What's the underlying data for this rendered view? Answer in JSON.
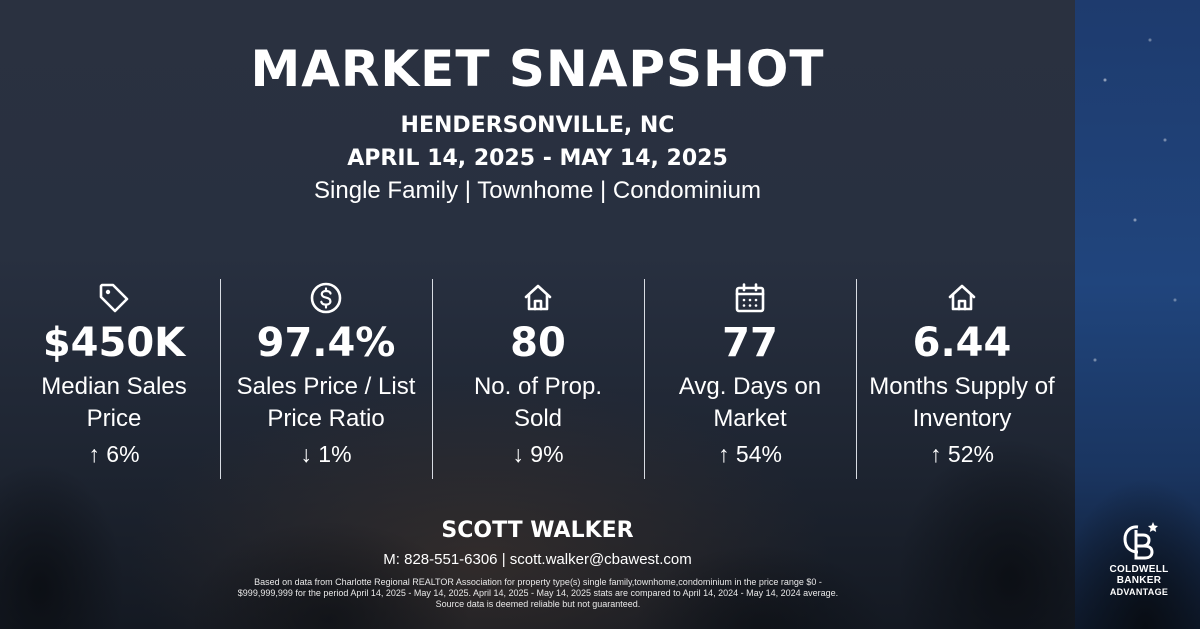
{
  "header": {
    "title": "MARKET SNAPSHOT",
    "location": "HENDERSONVILLE, NC",
    "date_range": "APRIL 14, 2025 - MAY 14, 2025",
    "property_types": "Single Family | Townhome | Condominium"
  },
  "stats": [
    {
      "icon": "price-tag-icon",
      "value": "$450K",
      "label": "Median Sales Price",
      "change": "↑ 6%"
    },
    {
      "icon": "dollar-circle-icon",
      "value": "97.4%",
      "label": "Sales Price / List Price Ratio",
      "change": "↓ 1%"
    },
    {
      "icon": "house-icon",
      "value": "80",
      "label": "No. of Prop. Sold",
      "change": "↓ 9%"
    },
    {
      "icon": "calendar-icon",
      "value": "77",
      "label": "Avg. Days on Market",
      "change": "↑ 54%"
    },
    {
      "icon": "house-icon",
      "value": "6.44",
      "label": "Months Supply of Inventory",
      "change": "↑ 52%"
    }
  ],
  "agent": {
    "name": "SCOTT WALKER",
    "contact": "M: 828-551-6306 | scott.walker@cbawest.com"
  },
  "disclaimer": "Based on data from Charlotte Regional REALTOR Association for property type(s) single family,townhome,condominium in the price range $0 - $999,999,999 for the period April 14, 2025 - May 14, 2025. April 14, 2025 - May 14, 2025 stats are compared to April 14, 2024 - May 14, 2024 average. Source data is deemed reliable but not guaranteed.",
  "logo": {
    "line1": "COLDWELL",
    "line2": "BANKER",
    "line3": "ADVANTAGE"
  },
  "colors": {
    "text": "#ffffff",
    "background": "#232a37",
    "accent_sky": "#20457d"
  }
}
